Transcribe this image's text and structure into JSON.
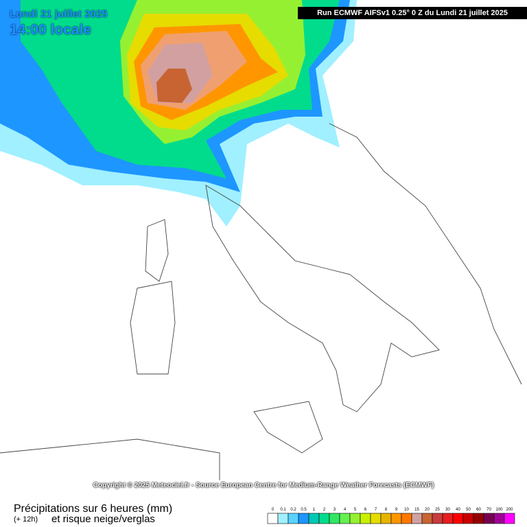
{
  "header": {
    "date": "Lundi 21 juillet 2025",
    "time": "14:00 locale",
    "run": "Run ECMWF AIFSv1 0.25° 0 Z du Lundi 21 juillet 2025"
  },
  "copyright": "Copyright © 2025 Meteociel.fr - Source European Centre for Medium-Range Weather Forecasts (ECMWF)",
  "footer": {
    "title": "Précipitations sur 6 heures (mm)",
    "lead": "(+ 12h)",
    "subtitle": "et risque neige/verglas"
  },
  "legend": {
    "items": [
      {
        "label": 0,
        "color": "#ffffff"
      },
      {
        "label": 0.1,
        "color": "#a0f0ff"
      },
      {
        "label": 0.2,
        "color": "#5ad2ff"
      },
      {
        "label": 0.5,
        "color": "#1e96ff"
      },
      {
        "label": 1,
        "color": "#00c8b4"
      },
      {
        "label": 2,
        "color": "#00dc8c"
      },
      {
        "label": 3,
        "color": "#32e664"
      },
      {
        "label": 4,
        "color": "#64f050"
      },
      {
        "label": 5,
        "color": "#96f032"
      },
      {
        "label": 6,
        "color": "#c8f000"
      },
      {
        "label": 7,
        "color": "#e6dc00"
      },
      {
        "label": 8,
        "color": "#e6b400"
      },
      {
        "label": 9,
        "color": "#ff9600"
      },
      {
        "label": 10,
        "color": "#ff7800"
      },
      {
        "label": 15,
        "color": "#d2a0a0"
      },
      {
        "label": 20,
        "color": "#c86432"
      },
      {
        "label": 25,
        "color": "#c83c3c"
      },
      {
        "label": 30,
        "color": "#e61e1e"
      },
      {
        "label": 40,
        "color": "#ff0000"
      },
      {
        "label": 50,
        "color": "#c80000"
      },
      {
        "label": 60,
        "color": "#960000"
      },
      {
        "label": 70,
        "color": "#780050"
      },
      {
        "label": 100,
        "color": "#a00096"
      },
      {
        "label": 200,
        "color": "#ff00ff"
      }
    ]
  }
}
